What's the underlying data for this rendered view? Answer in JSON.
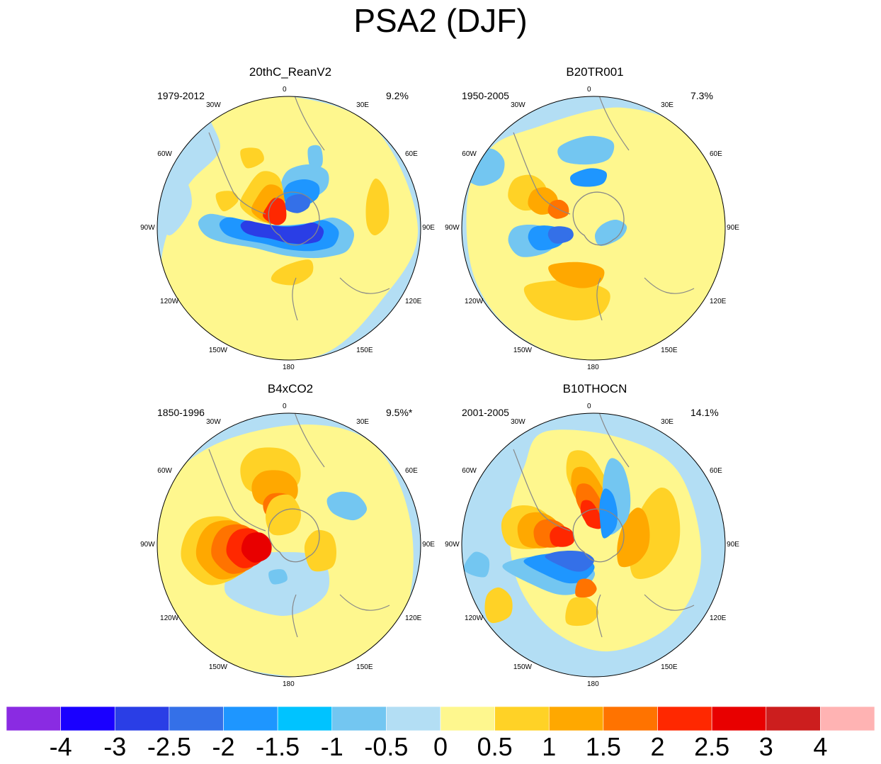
{
  "title": "PSA2 (DJF)",
  "colors": {
    "cn": "#b3def4",
    "cp": "#fef78e",
    "land": "#888888",
    "rim": "#000000"
  },
  "chart_data": {
    "type": "heatmap",
    "title": "PSA2 (DJF)",
    "projection": "South polar stereographic",
    "longitude_labels": [
      "0",
      "30E",
      "60E",
      "90E",
      "120E",
      "150E",
      "180",
      "150W",
      "120W",
      "90W",
      "60W",
      "30W"
    ],
    "panels": [
      {
        "name": "20thC_ReanV2",
        "years": "1979-2012",
        "variance": "9.2%"
      },
      {
        "name": "B20TR001",
        "years": "1950-2005",
        "variance": "7.3%"
      },
      {
        "name": "B4xCO2",
        "years": "1850-1996",
        "variance": "9.5%*"
      },
      {
        "name": "B10THOCN",
        "years": "2001-2005",
        "variance": "14.1%"
      }
    ],
    "colorbar": {
      "labels": [
        "-4",
        "-3",
        "-2.5",
        "-2",
        "-1.5",
        "-1",
        "-0.5",
        "0",
        "0.5",
        "1",
        "1.5",
        "2",
        "2.5",
        "3",
        "4"
      ],
      "colors": [
        "#8a2be2",
        "#1a00ff",
        "#2a3ee6",
        "#3470e8",
        "#1e96ff",
        "#00c3ff",
        "#73c6f1",
        "#b3def4",
        "#fef78e",
        "#ffd226",
        "#ffa800",
        "#ff7300",
        "#ff2800",
        "#e80000",
        "#cc1e1e",
        "#ffb3b3"
      ]
    }
  }
}
